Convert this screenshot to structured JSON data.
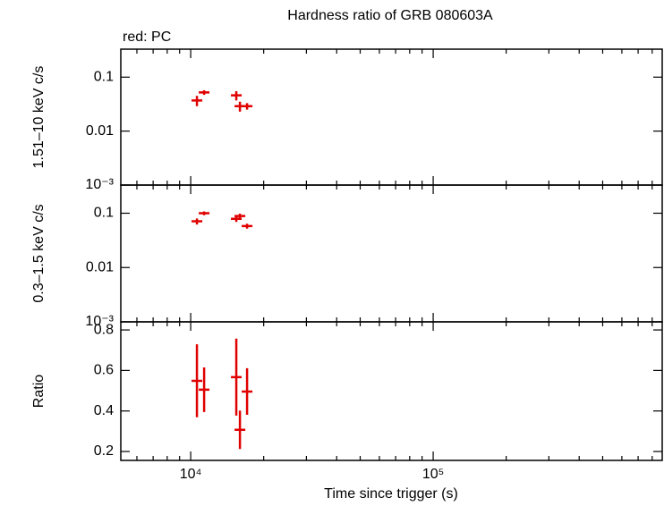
{
  "chart_data": [
    {
      "type": "scatter",
      "title": "Hardness ratio of GRB 080603A",
      "subtitle": "red: PC",
      "ylabel": "1.51–10 keV c/s",
      "log_x": true,
      "log_y": true,
      "xlim": [
        5150,
        880000
      ],
      "ylim": [
        0.001,
        0.33
      ],
      "yticks": [
        {
          "value": 0.001,
          "label": "10⁻³"
        },
        0.01,
        0.1
      ],
      "x": [
        10610,
        11360,
        15420,
        15960,
        17080
      ],
      "series": [
        {
          "color": "#e00000",
          "values": [
            0.037,
            0.052,
            0.046,
            0.029,
            0.029
          ],
          "errors": [
            0.008,
            0.005,
            0.009,
            0.006,
            0.004
          ]
        }
      ]
    },
    {
      "type": "scatter",
      "ylabel": "0.3–1.5 keV c/s",
      "log_x": true,
      "log_y": true,
      "xlim": [
        5150,
        880000
      ],
      "ylim": [
        0.001,
        0.33
      ],
      "yticks": [
        {
          "value": 0.001,
          "label": "10⁻³"
        },
        0.01,
        0.1
      ],
      "x": [
        10610,
        11360,
        15420,
        15960,
        17080
      ],
      "series": [
        {
          "color": "#e00000",
          "values": [
            0.071,
            0.1,
            0.079,
            0.089,
            0.058
          ],
          "errors": [
            0.009,
            0.008,
            0.01,
            0.009,
            0.006
          ]
        }
      ]
    },
    {
      "type": "scatter",
      "ylabel": "Ratio",
      "xlabel": "Time since trigger (s)",
      "log_x": true,
      "log_y": false,
      "xlim": [
        5150,
        880000
      ],
      "ylim": [
        0.156,
        0.84
      ],
      "xticks": [
        {
          "value": 10000,
          "label": "10⁴"
        },
        {
          "value": 100000,
          "label": "10⁵"
        }
      ],
      "xminorticks": [
        6000,
        7000,
        8000,
        9000,
        20000,
        30000,
        40000,
        50000,
        60000,
        70000,
        80000,
        90000,
        200000,
        300000,
        400000,
        500000,
        600000,
        700000,
        800000
      ],
      "yticks": [
        0.2,
        0.4,
        0.6,
        0.8
      ],
      "x": [
        10610,
        11360,
        15420,
        15960,
        17080
      ],
      "series": [
        {
          "color": "#e00000",
          "values": [
            0.549,
            0.505,
            0.567,
            0.307,
            0.496
          ],
          "errors": [
            0.18,
            0.11,
            0.19,
            0.095,
            0.115
          ]
        }
      ]
    }
  ]
}
